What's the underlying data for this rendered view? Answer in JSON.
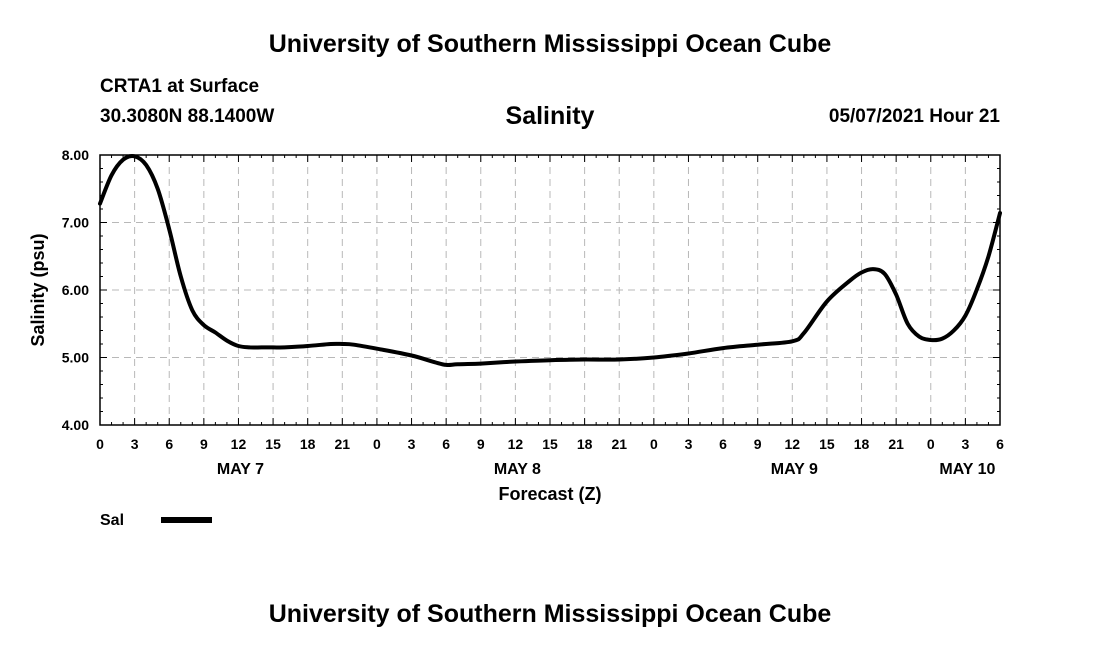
{
  "header": {
    "title_top": "University of Southern Mississippi Ocean Cube",
    "station": "CRTA1 at Surface",
    "coords": "30.3080N  88.1400W",
    "date": "05/07/2021 Hour 21"
  },
  "footer": {
    "title_bottom": "University of Southern Mississippi Ocean Cube"
  },
  "legend": {
    "label": "Sal",
    "color": "#000000"
  },
  "chart_data": {
    "type": "line",
    "title": "Salinity",
    "xlabel": "Forecast (Z)",
    "ylabel": "Salinity (psu)",
    "ylim": [
      4.0,
      8.0
    ],
    "xlim_hours": [
      0,
      78
    ],
    "grid": true,
    "y_ticks": [
      "4.00",
      "5.00",
      "6.00",
      "7.00",
      "8.00"
    ],
    "y_tick_values": [
      4.0,
      5.0,
      6.0,
      7.0,
      8.0
    ],
    "x_tick_hours": [
      0,
      3,
      6,
      9,
      12,
      15,
      18,
      21,
      24,
      27,
      30,
      33,
      36,
      39,
      42,
      45,
      48,
      51,
      54,
      57,
      60,
      63,
      66,
      69,
      72,
      75,
      78
    ],
    "x_tick_labels": [
      "0",
      "3",
      "6",
      "9",
      "12",
      "15",
      "18",
      "21",
      "0",
      "3",
      "6",
      "9",
      "12",
      "15",
      "18",
      "21",
      "0",
      "3",
      "6",
      "9",
      "12",
      "15",
      "18",
      "21",
      "0",
      "3",
      "6"
    ],
    "day_labels": [
      {
        "label": "MAY 7",
        "hour": 12
      },
      {
        "label": "MAY 8",
        "hour": 36
      },
      {
        "label": "MAY 9",
        "hour": 60
      },
      {
        "label": "MAY 10",
        "hour": 75
      }
    ],
    "series": [
      {
        "name": "Sal",
        "x": [
          0,
          1,
          2,
          3,
          4,
          5,
          6,
          7,
          8,
          9,
          10,
          11,
          12,
          13,
          14,
          15,
          16,
          18,
          20,
          21,
          22,
          24,
          27,
          29,
          30,
          31,
          33,
          36,
          39,
          42,
          45,
          48,
          51,
          54,
          57,
          60,
          61,
          63,
          65,
          66,
          67,
          68,
          69,
          70,
          71,
          72,
          73,
          74,
          75,
          76,
          77,
          78
        ],
        "values": [
          7.28,
          7.7,
          7.93,
          7.98,
          7.85,
          7.5,
          6.9,
          6.2,
          5.7,
          5.48,
          5.37,
          5.25,
          5.17,
          5.15,
          5.15,
          5.15,
          5.15,
          5.17,
          5.2,
          5.2,
          5.19,
          5.13,
          5.03,
          4.93,
          4.89,
          4.9,
          4.91,
          4.94,
          4.96,
          4.97,
          4.97,
          5.0,
          5.06,
          5.14,
          5.19,
          5.24,
          5.36,
          5.83,
          6.14,
          6.26,
          6.31,
          6.24,
          5.93,
          5.5,
          5.31,
          5.26,
          5.28,
          5.4,
          5.62,
          6.01,
          6.5,
          7.14
        ]
      }
    ]
  }
}
